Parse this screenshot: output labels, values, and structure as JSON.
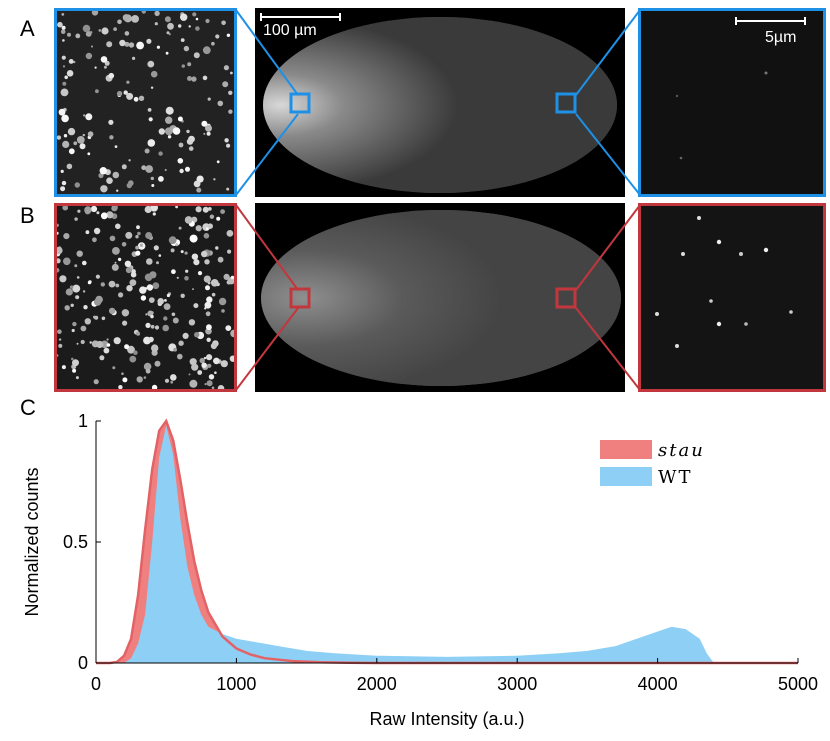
{
  "panels": {
    "a": "A",
    "b": "B",
    "c": "C"
  },
  "scalebars": {
    "embryo": "100 µm",
    "zoom": "5µm"
  },
  "colors": {
    "wt": "#8ecff5",
    "stau": "#f08080",
    "stau_line": "#e26266",
    "blue_box": "#1e90e6",
    "red_box": "#c1373d"
  },
  "chart_data": {
    "type": "area",
    "title": "",
    "xlabel": "Raw Intensity (a.u.)",
    "ylabel": "Normalized counts",
    "xlim": [
      0,
      5000
    ],
    "ylim": [
      0,
      1
    ],
    "xticks": [
      0,
      1000,
      2000,
      3000,
      4000,
      5000
    ],
    "xtick_labels": [
      "0",
      "1000",
      "2000",
      "3000",
      "4000",
      "5000"
    ],
    "yticks": [
      0,
      0.5,
      1
    ],
    "ytick_labels": [
      "0",
      "0.5",
      "1"
    ],
    "legend_position": "top-right",
    "series": [
      {
        "name": "stau",
        "x": [
          0,
          100,
          150,
          200,
          250,
          300,
          350,
          400,
          450,
          500,
          550,
          600,
          650,
          700,
          750,
          800,
          900,
          1000,
          1100,
          1200,
          1400,
          1600,
          1800,
          2000,
          3000,
          4000,
          5000
        ],
        "values": [
          0,
          0,
          0.005,
          0.03,
          0.1,
          0.28,
          0.55,
          0.8,
          0.96,
          1.0,
          0.92,
          0.76,
          0.58,
          0.42,
          0.3,
          0.21,
          0.11,
          0.06,
          0.035,
          0.02,
          0.008,
          0.003,
          0.001,
          0,
          0,
          0,
          0
        ]
      },
      {
        "name": "WT",
        "x": [
          0,
          200,
          250,
          300,
          350,
          400,
          450,
          500,
          550,
          600,
          650,
          700,
          750,
          800,
          900,
          1000,
          1100,
          1200,
          1300,
          1400,
          1500,
          1700,
          2000,
          2500,
          3000,
          3300,
          3500,
          3700,
          3800,
          3900,
          4000,
          4100,
          4200,
          4300,
          4350,
          4400,
          4500,
          5000
        ],
        "values": [
          0,
          0,
          0.02,
          0.08,
          0.2,
          0.5,
          0.85,
          0.98,
          0.86,
          0.6,
          0.4,
          0.28,
          0.2,
          0.15,
          0.12,
          0.1,
          0.09,
          0.08,
          0.07,
          0.06,
          0.05,
          0.04,
          0.03,
          0.025,
          0.03,
          0.04,
          0.05,
          0.07,
          0.09,
          0.11,
          0.13,
          0.15,
          0.14,
          0.1,
          0.04,
          0,
          0,
          0
        ]
      }
    ]
  }
}
